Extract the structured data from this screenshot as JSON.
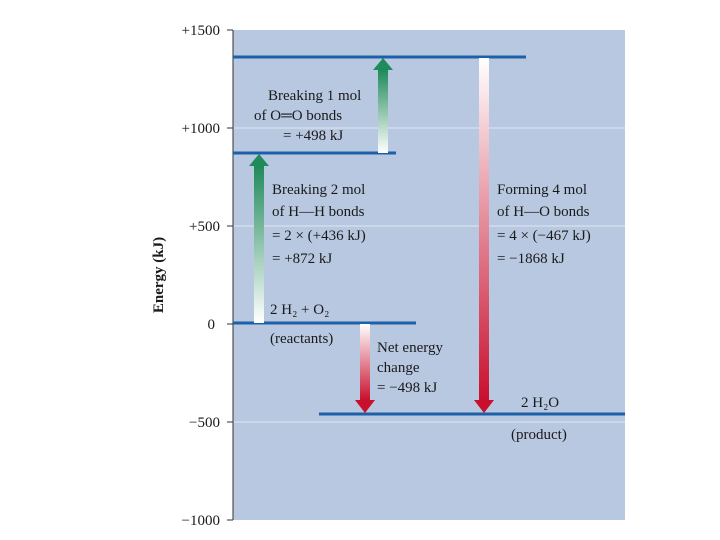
{
  "axis": {
    "label": "Energy (kJ)",
    "ticks": [
      "+1500",
      "+1000",
      "+500",
      "0",
      "−500",
      "−1000"
    ]
  },
  "colors": {
    "panel": "#b8c8e0",
    "level": "#1d5fa8",
    "gridline": "#dfe6f1",
    "arrow_up": "#1f8a5a",
    "arrow_down": "#c8102e"
  },
  "levels": {
    "reactants": {
      "formula": "2 H₂ + O₂",
      "note": "(reactants)"
    },
    "product": {
      "formula": "2 H₂O",
      "note": "(product)"
    }
  },
  "steps": {
    "break_hh": [
      "Breaking 2 mol",
      "of H—H  bonds",
      "= 2 × (+436 kJ)",
      "= +872 kJ"
    ],
    "break_oo": [
      "Breaking 1 mol",
      "of  O═O  bonds",
      "= +498 kJ"
    ],
    "form_oh": [
      "Forming 4 mol",
      "of  H—O  bonds",
      "= 4 × (−467 kJ)",
      "= −1868 kJ"
    ],
    "net": [
      "Net energy",
      "change",
      "= −498 kJ"
    ]
  }
}
